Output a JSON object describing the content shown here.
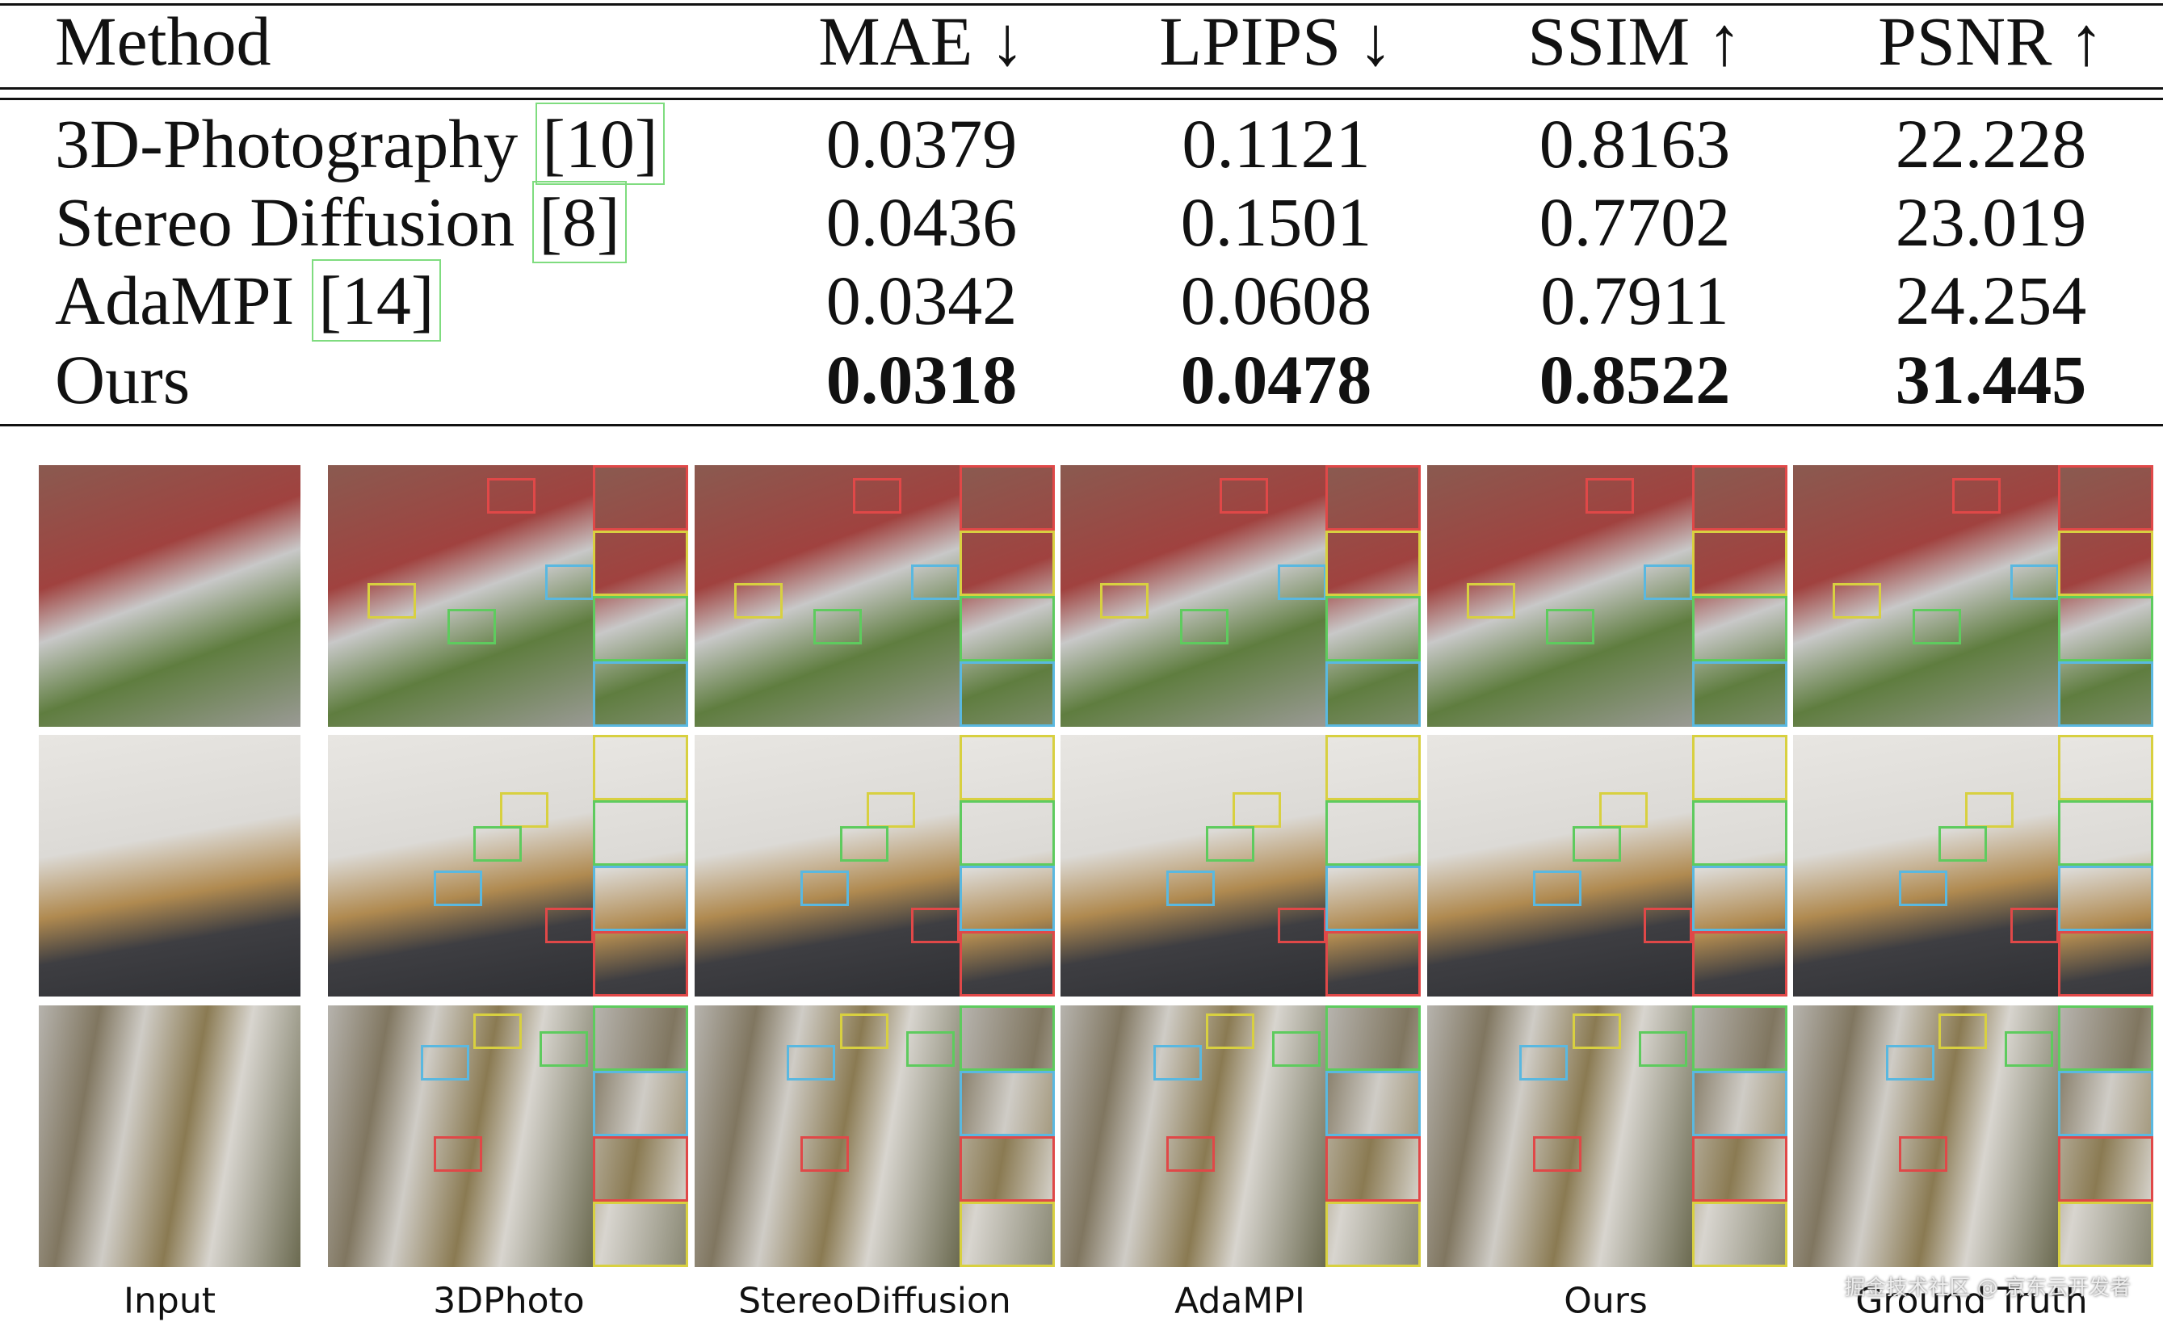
{
  "table": {
    "headers": [
      "Method",
      "MAE ↓",
      "LPIPS ↓",
      "SSIM ↑",
      "PSNR ↑"
    ],
    "rows": [
      {
        "method": "3D-Photography",
        "cite": "[10]",
        "values": [
          "0.0379",
          "0.1121",
          "0.8163",
          "22.228"
        ]
      },
      {
        "method": "Stereo Diffusion",
        "cite": "[8]",
        "values": [
          "0.0436",
          "0.1501",
          "0.7702",
          "23.019"
        ]
      },
      {
        "method": "AdaMPI",
        "cite": "[14]",
        "values": [
          "0.0342",
          "0.0608",
          "0.7911",
          "24.254"
        ]
      },
      {
        "method": "Ours",
        "values": [
          "0.0318",
          "0.0478",
          "0.8522",
          "31.445"
        ]
      }
    ]
  },
  "figure": {
    "captions": [
      "Input",
      "3DPhoto",
      "StereoDiffusion",
      "AdaMPI",
      "Ours",
      "Ground Truth"
    ]
  },
  "watermark": "掘金技术社区 @ 京东云开发者"
}
